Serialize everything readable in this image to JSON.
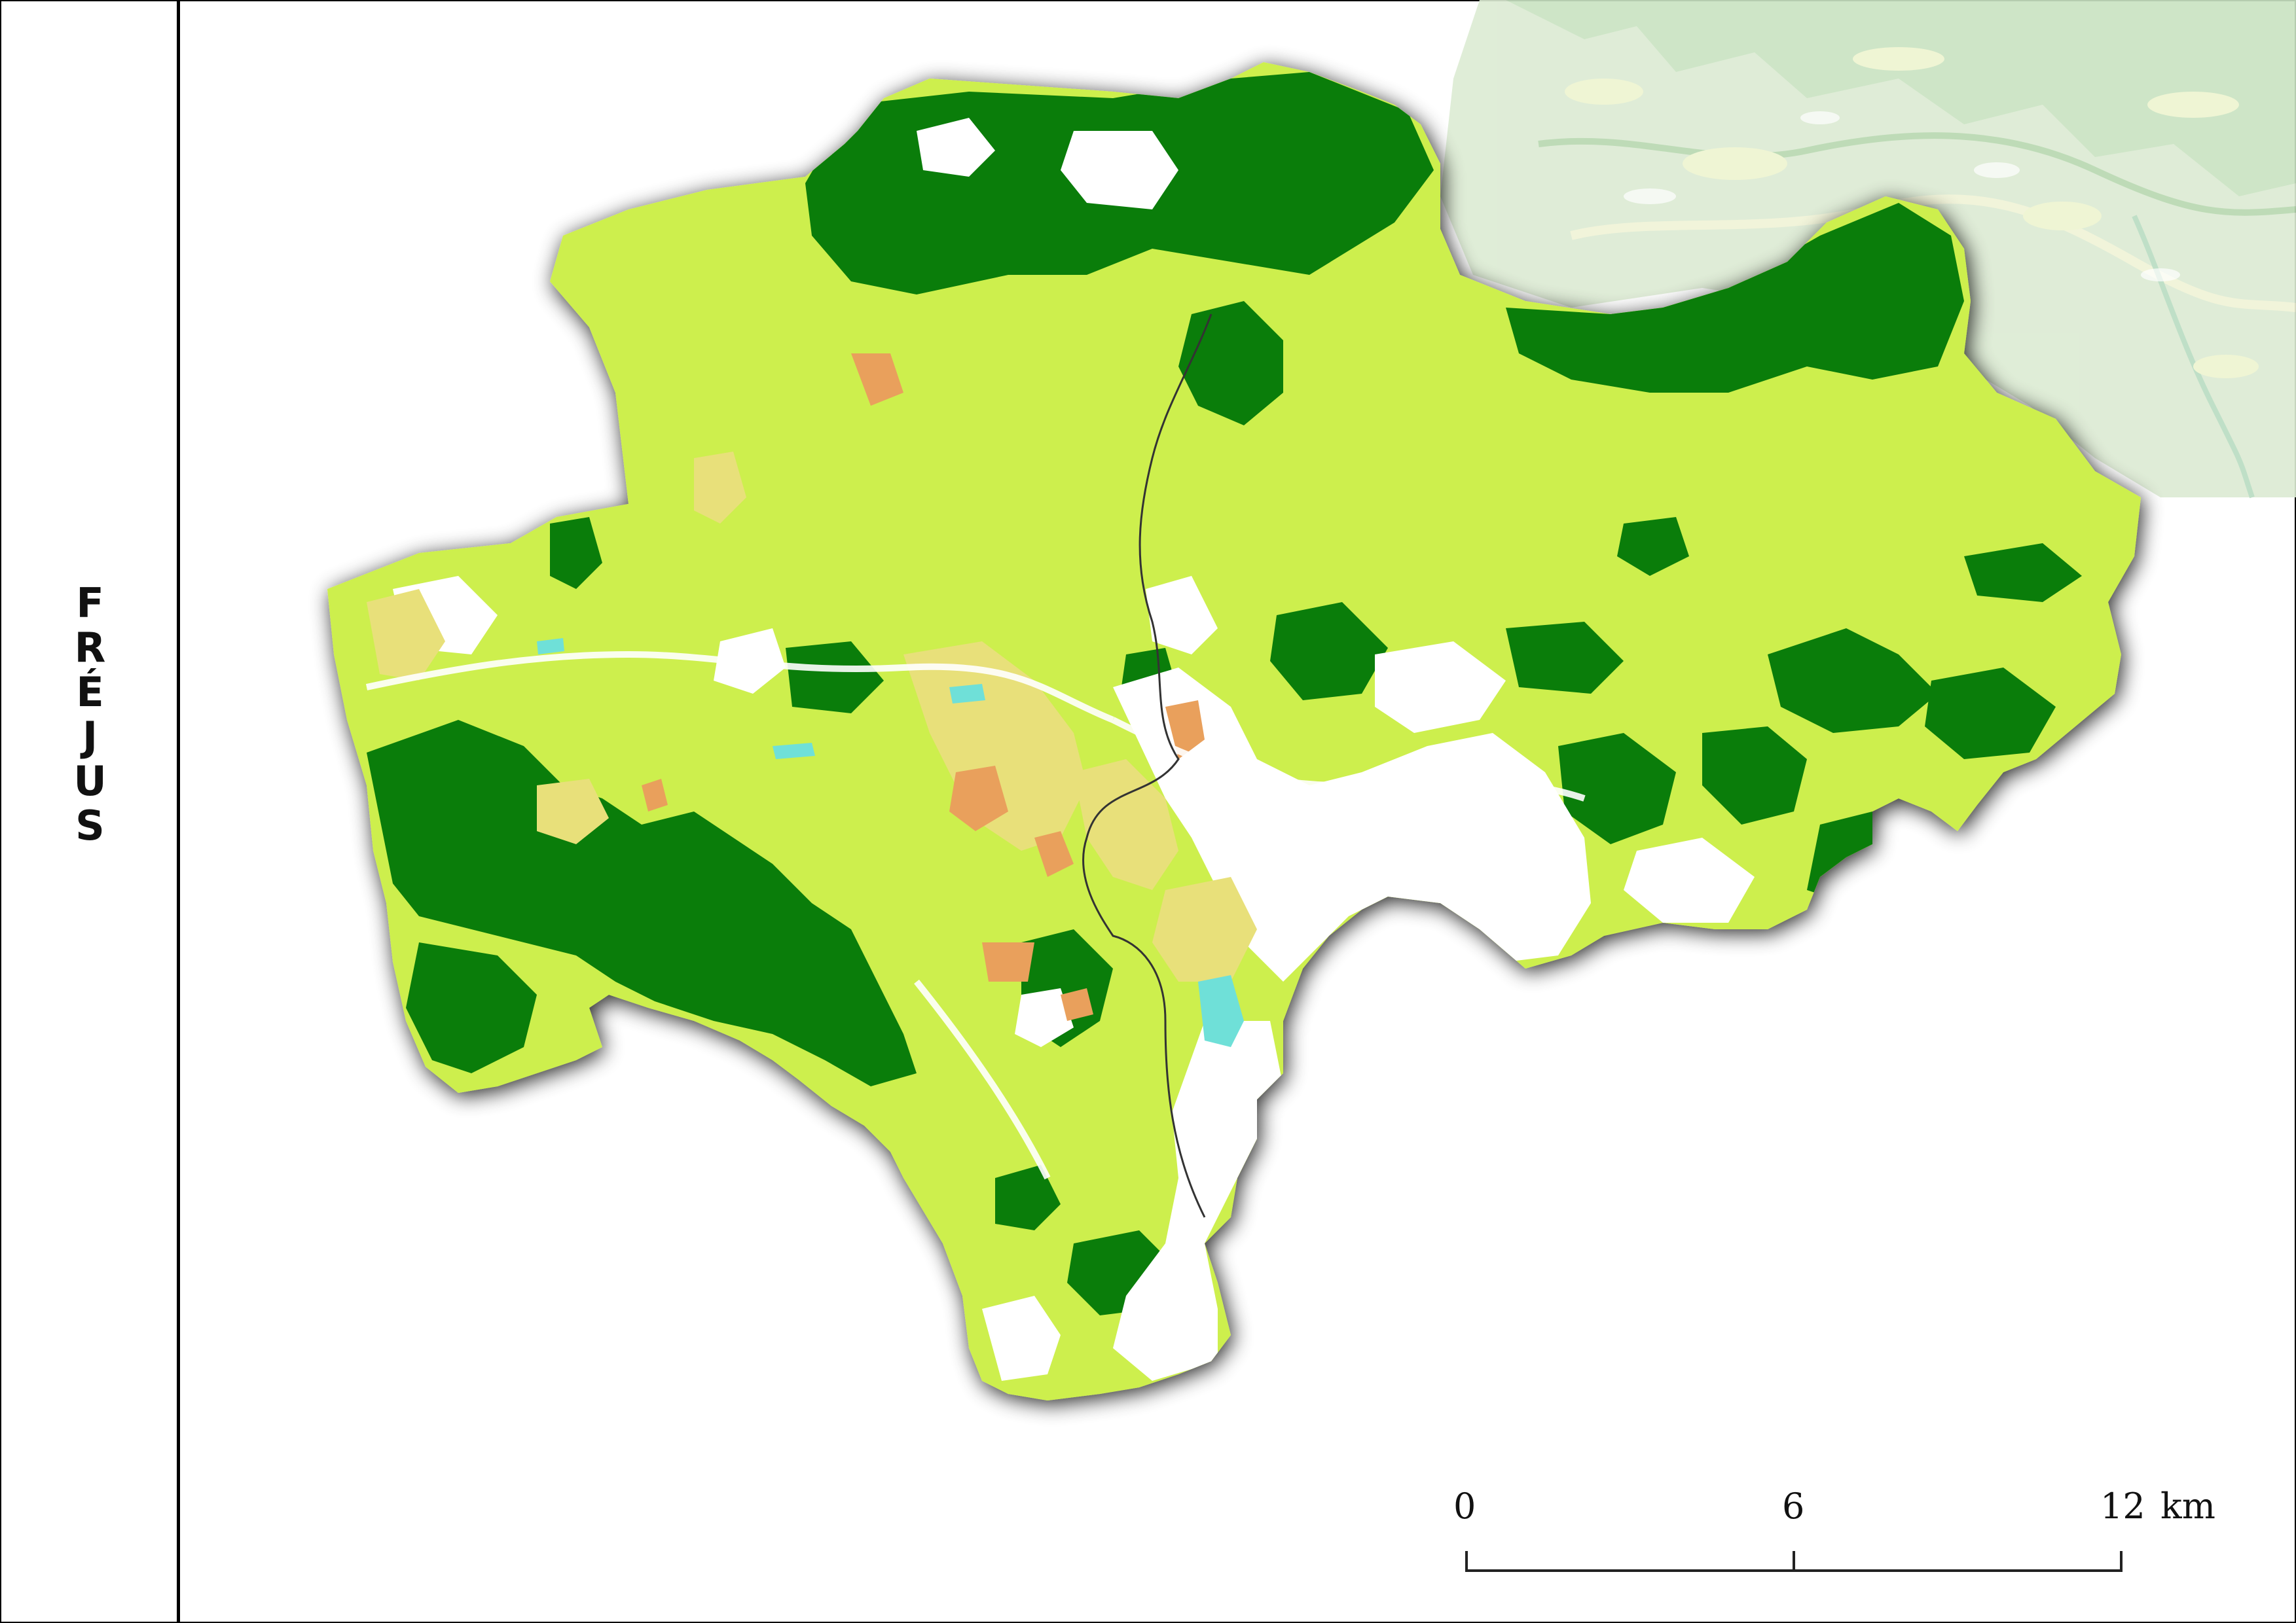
{
  "title_letters": [
    "F",
    "R",
    "É",
    "J",
    "U",
    "S"
  ],
  "scale": {
    "ticks": [
      "0",
      "6",
      "12"
    ],
    "unit": "km"
  },
  "colors": {
    "dense_forest": "#0a7d0a",
    "open_vegetation": "#cdef4e",
    "agriculture": "#e8e07a",
    "urban_orange": "#e9a05c",
    "water": "#6fe0d8",
    "background_relief": "#dcebd3",
    "outline": "#333333",
    "shadow": "#000000"
  }
}
